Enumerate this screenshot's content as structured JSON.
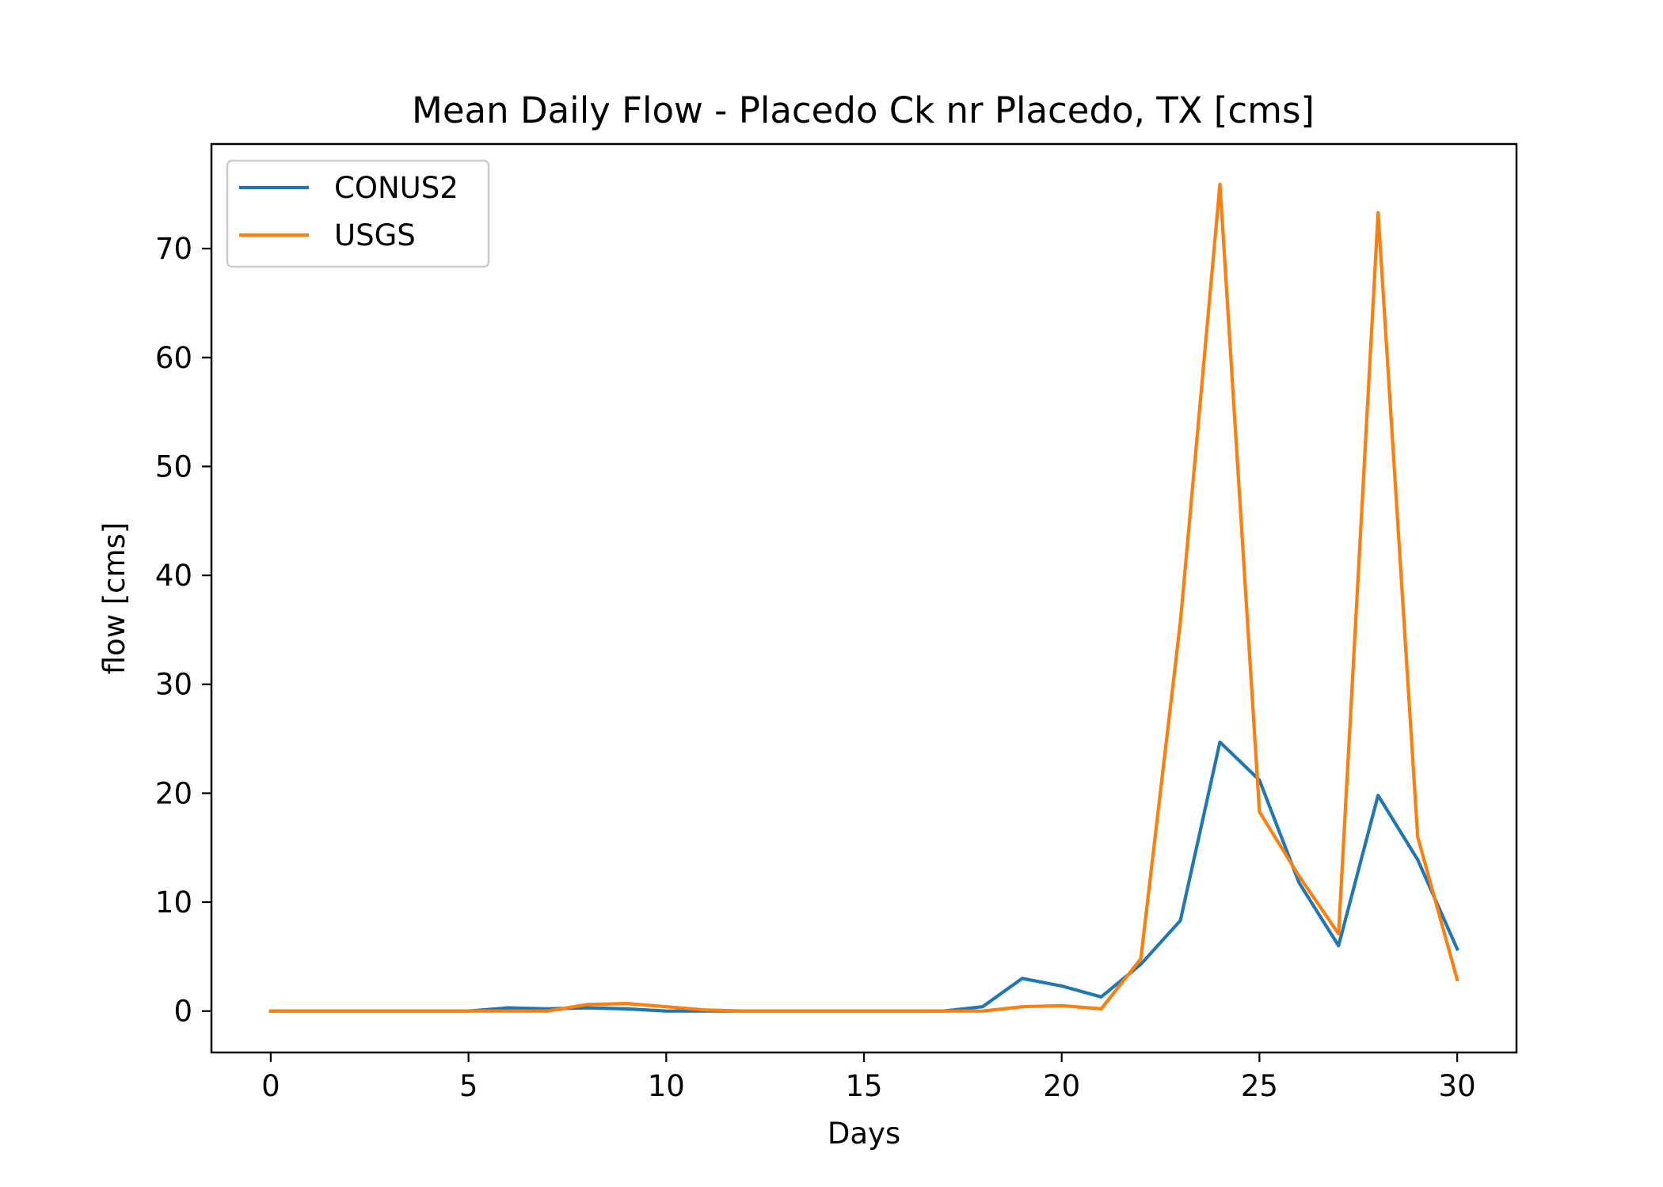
{
  "chart_data": {
    "type": "line",
    "title": "Mean Daily Flow - Placedo Ck nr Placedo, TX [cms]",
    "xlabel": "Days",
    "ylabel": "flow [cms]",
    "xlim": [
      -1.5,
      31.5
    ],
    "ylim": [
      -3.8,
      79.6
    ],
    "xticks": [
      0,
      5,
      10,
      15,
      20,
      25,
      30
    ],
    "yticks": [
      0,
      10,
      20,
      30,
      40,
      50,
      60,
      70
    ],
    "grid": false,
    "legend_position": "top-left",
    "x": [
      0,
      1,
      2,
      3,
      4,
      5,
      6,
      7,
      8,
      9,
      10,
      11,
      12,
      13,
      14,
      15,
      16,
      17,
      18,
      19,
      20,
      21,
      22,
      23,
      24,
      25,
      26,
      27,
      28,
      29,
      30
    ],
    "series": [
      {
        "name": "CONUS2",
        "color": "#1f77b4",
        "values": [
          0,
          0,
          0,
          0,
          0,
          0,
          0.3,
          0.2,
          0.3,
          0.2,
          0,
          0,
          0,
          0,
          0,
          0,
          0,
          0,
          0.4,
          3.0,
          2.3,
          1.3,
          4.3,
          8.3,
          24.7,
          21.2,
          11.8,
          6.0,
          19.8,
          13.9,
          5.7
        ]
      },
      {
        "name": "USGS",
        "color": "#ff7f0e",
        "values": [
          0,
          0,
          0,
          0,
          0,
          0,
          0,
          0,
          0.6,
          0.7,
          0.4,
          0.1,
          0,
          0,
          0,
          0,
          0,
          0,
          0,
          0.4,
          0.5,
          0.2,
          4.8,
          35.7,
          75.9,
          18.3,
          12.4,
          7.1,
          73.3,
          16.0,
          2.9
        ]
      }
    ]
  }
}
